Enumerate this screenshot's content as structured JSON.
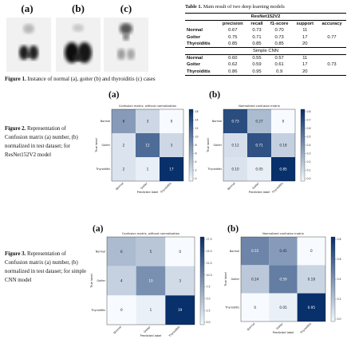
{
  "fig1": {
    "panels": [
      {
        "label": "(a)",
        "icon": "normal-thyroid-scan"
      },
      {
        "label": "(b)",
        "icon": "goiter-thyroid-scan"
      },
      {
        "label": "(c)",
        "icon": "thyroiditis-thyroid-scan"
      }
    ],
    "caption_bold": "Figure 1.",
    "caption_text": " Instance of normal (a), goiter (b) and thyroiditis (c) cases"
  },
  "table1": {
    "caption_bold": "Table 1.",
    "caption_text": " Main result of two deep learning models",
    "headers": [
      "",
      "precision",
      "recall",
      "f1-score",
      "support",
      "accuracy"
    ],
    "models": [
      {
        "name": "ResNet152V2",
        "rows": [
          [
            "Normal",
            "0.67",
            "0.73",
            "0.70",
            "11",
            ""
          ],
          [
            "Goiter",
            "0.75",
            "0.71",
            "0.73",
            "17",
            "0.77"
          ],
          [
            "Thyroiditis",
            "0.85",
            "0.85",
            "0.85",
            "20",
            ""
          ]
        ]
      },
      {
        "name": "Simple CNN",
        "rows": [
          [
            "Normal",
            "0.60",
            "0.55",
            "0.57",
            "11",
            ""
          ],
          [
            "Goiter",
            "0.62",
            "0.59",
            "0.61",
            "17",
            "0.73"
          ],
          [
            "Thyroiditis",
            "0.86",
            "0.95",
            "0.9",
            "20",
            ""
          ]
        ]
      }
    ]
  },
  "fig2": {
    "caption_bold": "Figure 2.",
    "caption_text": " Representation of Confusion matrix (a) number, (b) normalized in test dataset; for ResNet152V2 model"
  },
  "fig3": {
    "caption_bold": "Figure 3.",
    "caption_text": " Representation of Confusion matrix (a) number, (b) normalized in test dataset; for simple CNN model"
  },
  "chart_data": [
    {
      "type": "heatmap",
      "panel": "(a)",
      "title": "Confusion matrix, without normalization",
      "xlabel": "Predicted label",
      "ylabel": "True label",
      "classes": [
        "Normal",
        "Goiter",
        "Thyroiditis"
      ],
      "matrix": [
        [
          8,
          3,
          0
        ],
        [
          2,
          12,
          3
        ],
        [
          2,
          1,
          17
        ]
      ],
      "colorbar_ticks": [
        "16",
        "14",
        "12",
        "10",
        "8",
        "6",
        "4",
        "2",
        "0"
      ],
      "vmax": 17
    },
    {
      "type": "heatmap",
      "panel": "(b)",
      "title": "Normalized confusion matrix",
      "xlabel": "Predicted label",
      "ylabel": "True label",
      "classes": [
        "Normal",
        "Goiter",
        "Thyroiditis"
      ],
      "matrix": [
        [
          0.73,
          0.27,
          0.0
        ],
        [
          0.12,
          0.71,
          0.18
        ],
        [
          0.1,
          0.05,
          0.85
        ]
      ],
      "colorbar_ticks": [
        "0.8",
        "0.7",
        "0.6",
        "0.5",
        "0.4",
        "0.3",
        "0.2",
        "0.1",
        "0.0"
      ],
      "vmax": 0.85
    },
    {
      "type": "heatmap",
      "panel": "(a)",
      "title": "Confusion matrix, without normalization",
      "xlabel": "Predicted label",
      "ylabel": "True label",
      "classes": [
        "Normal",
        "Goiter",
        "Thyroiditis"
      ],
      "matrix": [
        [
          6,
          5,
          0
        ],
        [
          4,
          10,
          3
        ],
        [
          0,
          1,
          19
        ]
      ],
      "colorbar_ticks": [
        "17.5",
        "15.0",
        "12.5",
        "10.0",
        "7.5",
        "5.0",
        "2.5",
        "0.0"
      ],
      "vmax": 19
    },
    {
      "type": "heatmap",
      "panel": "(b)",
      "title": "Normalized confusion matrix",
      "xlabel": "Predicted label",
      "ylabel": "True label",
      "classes": [
        "Normal",
        "Goiter",
        "Thyroiditis"
      ],
      "matrix": [
        [
          0.55,
          0.45,
          0.0
        ],
        [
          0.24,
          0.59,
          0.18
        ],
        [
          0.0,
          0.05,
          0.95
        ]
      ],
      "colorbar_ticks": [
        "0.8",
        "0.6",
        "0.4",
        "0.2",
        "0.0"
      ],
      "vmax": 0.95
    }
  ]
}
